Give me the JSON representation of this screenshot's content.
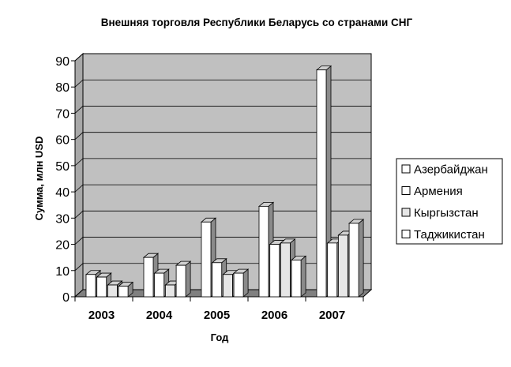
{
  "chart_data": {
    "type": "bar",
    "title": "Внешняя торговля Республики Беларусь со странами СНГ",
    "xlabel": "Год",
    "ylabel": "Сумма, млн USD",
    "categories": [
      "2003",
      "2004",
      "2005",
      "2006",
      "2007"
    ],
    "series": [
      {
        "name": "Азербайджан",
        "values": [
          8.5,
          15,
          28.5,
          34.5,
          86.5
        ]
      },
      {
        "name": "Армения",
        "values": [
          7.5,
          9,
          13,
          20,
          20.5
        ]
      },
      {
        "name": "Кыргызстан",
        "values": [
          4.5,
          4.5,
          8.5,
          20.5,
          23.5
        ]
      },
      {
        "name": "Таджикистан",
        "values": [
          4,
          12,
          9,
          14,
          28
        ]
      }
    ],
    "ylim": [
      0,
      90
    ],
    "yticks": [
      "0",
      "10",
      "20",
      "30",
      "40",
      "50",
      "60",
      "70",
      "80",
      "90"
    ],
    "grid": true,
    "legend": "right",
    "colors": {
      "plot_wall": "#c0c0c0",
      "floor": "#808080",
      "series_fill": [
        "#ffffff",
        "#ffffff",
        "#e6e6e6",
        "#ffffff"
      ],
      "bar_side": "#8a8a8a",
      "bar_top": "#cfcfcf",
      "outline": "#000000"
    }
  }
}
